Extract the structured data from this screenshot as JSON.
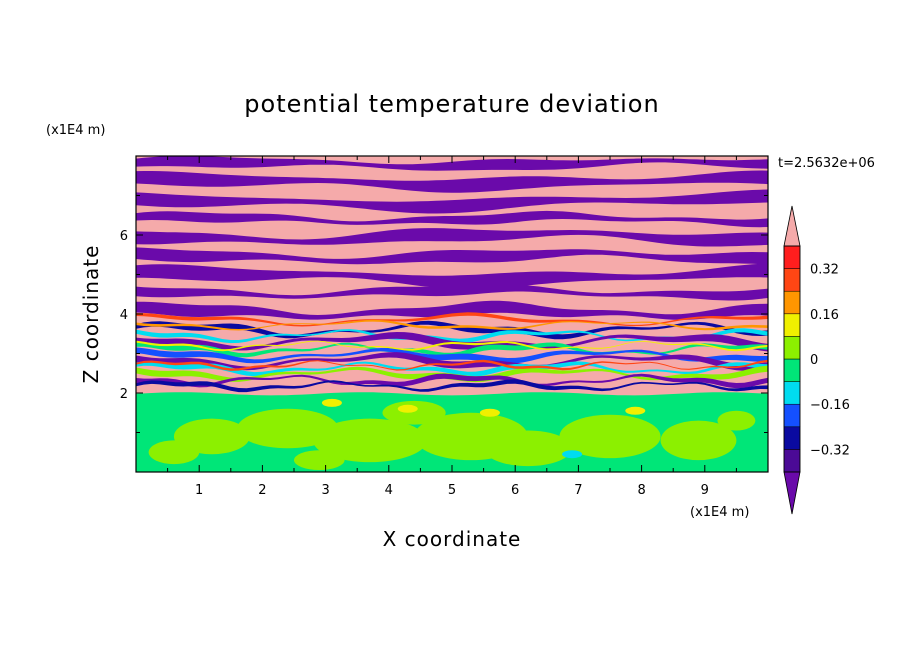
{
  "chart_data": {
    "type": "heatmap",
    "title": "potential temperature deviation",
    "xlabel": "X coordinate",
    "ylabel": "Z coordinate",
    "x_unit": "(x1E4 m)",
    "y_unit": "(x1E4 m)",
    "time_label": "t=2.5632e+06",
    "xlim": [
      0,
      10
    ],
    "ylim": [
      0,
      8
    ],
    "x_ticks": [
      1,
      2,
      3,
      4,
      5,
      6,
      7,
      8,
      9
    ],
    "y_ticks": [
      2,
      4,
      6
    ],
    "colorbar": {
      "levels": [
        -0.4,
        -0.32,
        -0.24,
        -0.16,
        -0.08,
        0,
        0.08,
        0.16,
        0.24,
        0.32,
        0.4
      ],
      "tick_labels": [
        "0.32",
        "0.16",
        "0",
        "−0.16",
        "−0.32"
      ],
      "tick_values": [
        0.32,
        0.16,
        0,
        -0.16,
        -0.32
      ],
      "colors": [
        "#4b0a96",
        "#0a0aa0",
        "#1450ff",
        "#00dcf0",
        "#00e678",
        "#8cf000",
        "#f0f000",
        "#ff9600",
        "#ff4614",
        "#ff1e1e"
      ],
      "under_color": "#6a0aaa",
      "over_color": "#f5aaaa"
    }
  },
  "colors": {
    "band_pink": "#f5aaaa",
    "band_purple": "#6a0aaa",
    "lower_green": "#00e678",
    "lower_lime": "#8cf000"
  }
}
